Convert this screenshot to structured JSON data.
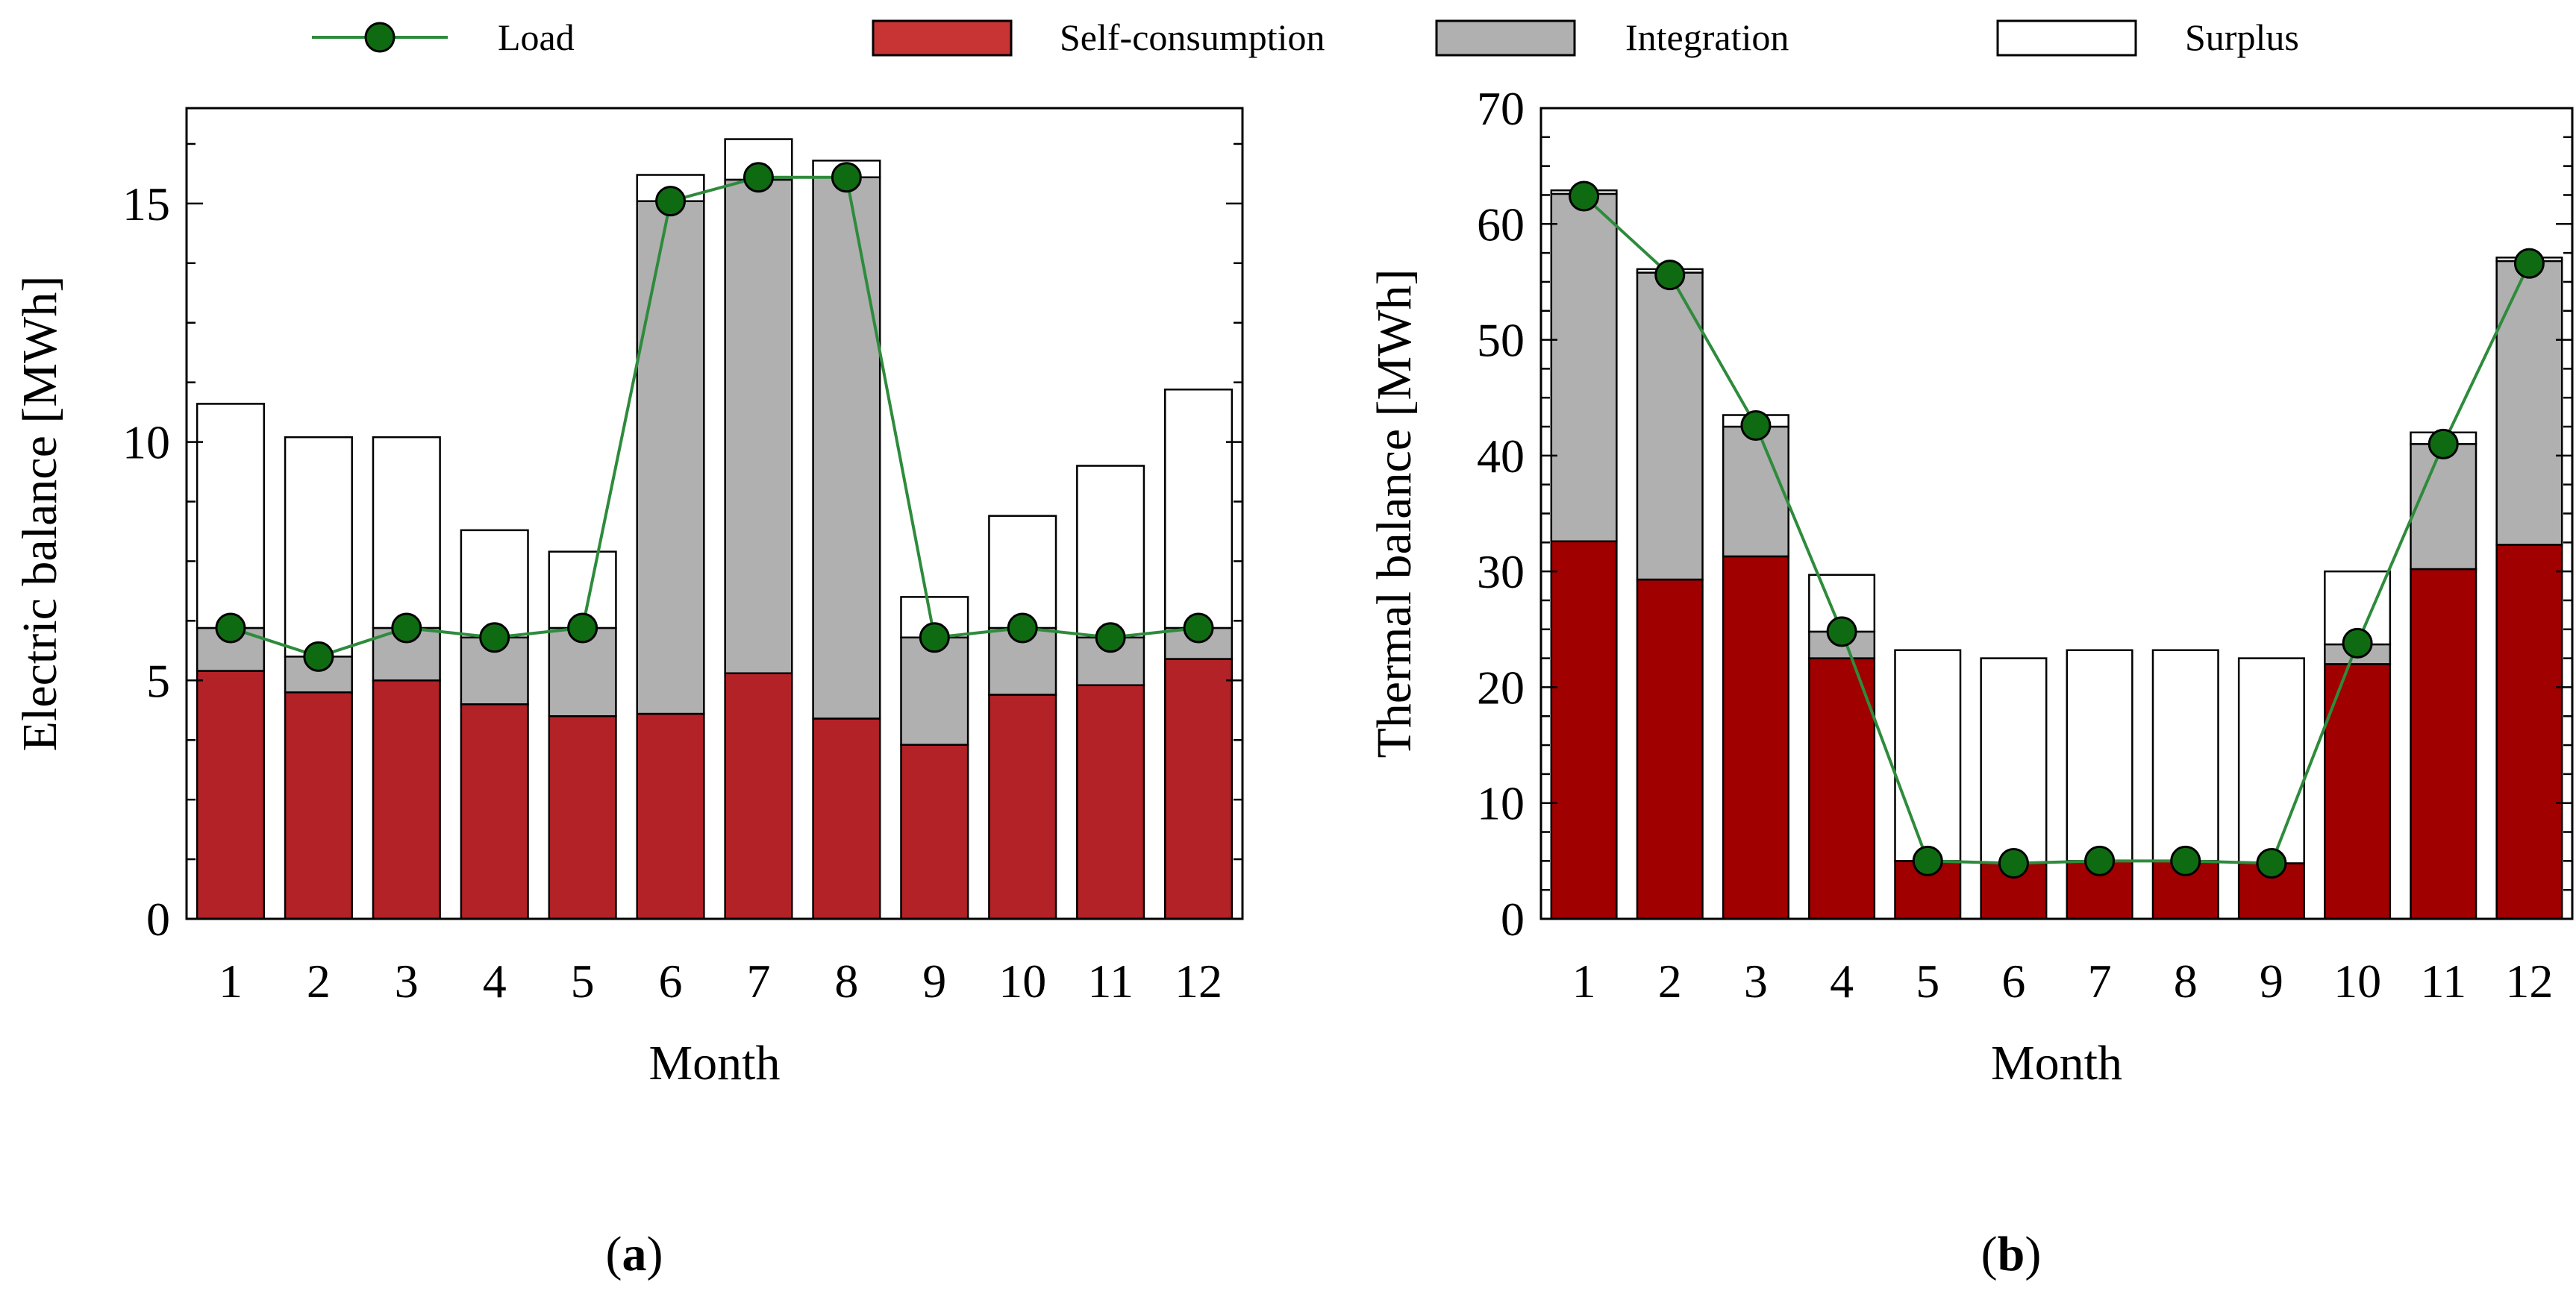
{
  "legend": {
    "load": "Load",
    "self_consumption": "Self-consumption",
    "integration": "Integration",
    "surplus": "Surplus"
  },
  "colors": {
    "self_consumption_a": "#b22226",
    "self_consumption_b": "#a00000",
    "self_consumption_legend": "#c83434",
    "integration": "#b0b0b0",
    "surplus": "#ffffff",
    "load_line": "#2e8b3c",
    "load_marker": "#0f6b12"
  },
  "chart_data": [
    {
      "type": "bar",
      "stacked": true,
      "panel_label": "(a)",
      "panel_letter": "a",
      "xlabel": "Month",
      "ylabel": "Electric balance [MWh]",
      "ylim": [
        0,
        17
      ],
      "yticks": [
        0,
        5,
        10,
        15
      ],
      "categories": [
        "1",
        "2",
        "3",
        "4",
        "5",
        "6",
        "7",
        "8",
        "9",
        "10",
        "11",
        "12"
      ],
      "series": [
        {
          "name": "Self-consumption",
          "values": [
            5.2,
            4.75,
            5.0,
            4.5,
            4.25,
            4.3,
            5.15,
            4.2,
            3.65,
            4.7,
            4.9,
            5.45
          ]
        },
        {
          "name": "Integration",
          "values": [
            0.9,
            0.75,
            1.1,
            1.4,
            1.85,
            10.75,
            10.35,
            11.35,
            2.25,
            1.4,
            1.0,
            0.65
          ]
        },
        {
          "name": "Surplus",
          "values": [
            4.7,
            4.6,
            4.0,
            2.25,
            1.6,
            0.55,
            0.85,
            0.35,
            0.85,
            2.35,
            3.6,
            5.0
          ]
        }
      ],
      "load": [
        6.1,
        5.5,
        6.1,
        5.9,
        6.1,
        15.05,
        15.55,
        15.55,
        5.9,
        6.1,
        5.9,
        6.1
      ]
    },
    {
      "type": "bar",
      "stacked": true,
      "panel_label": "(b)",
      "panel_letter": "b",
      "xlabel": "Month",
      "ylabel": "Thermal balance [MWh]",
      "ylim": [
        0,
        70
      ],
      "yticks": [
        0,
        10,
        20,
        30,
        40,
        50,
        60,
        70
      ],
      "categories": [
        "1",
        "2",
        "3",
        "4",
        "5",
        "6",
        "7",
        "8",
        "9",
        "10",
        "11",
        "12"
      ],
      "series": [
        {
          "name": "Self-consumption",
          "values": [
            32.6,
            29.3,
            31.3,
            22.5,
            5.0,
            4.8,
            5.0,
            5.0,
            4.8,
            22.0,
            30.2,
            32.3
          ]
        },
        {
          "name": "Integration",
          "values": [
            30.0,
            26.5,
            11.2,
            2.3,
            0,
            0,
            0,
            0,
            0,
            1.7,
            10.8,
            24.5
          ]
        },
        {
          "name": "Surplus",
          "values": [
            0.3,
            0.3,
            1.0,
            4.9,
            18.2,
            17.7,
            18.2,
            18.2,
            17.7,
            6.3,
            1.0,
            0.3
          ]
        }
      ],
      "load": [
        62.4,
        55.6,
        42.6,
        24.8,
        5.0,
        4.8,
        5.0,
        5.0,
        4.8,
        23.8,
        41.0,
        56.6
      ]
    }
  ]
}
